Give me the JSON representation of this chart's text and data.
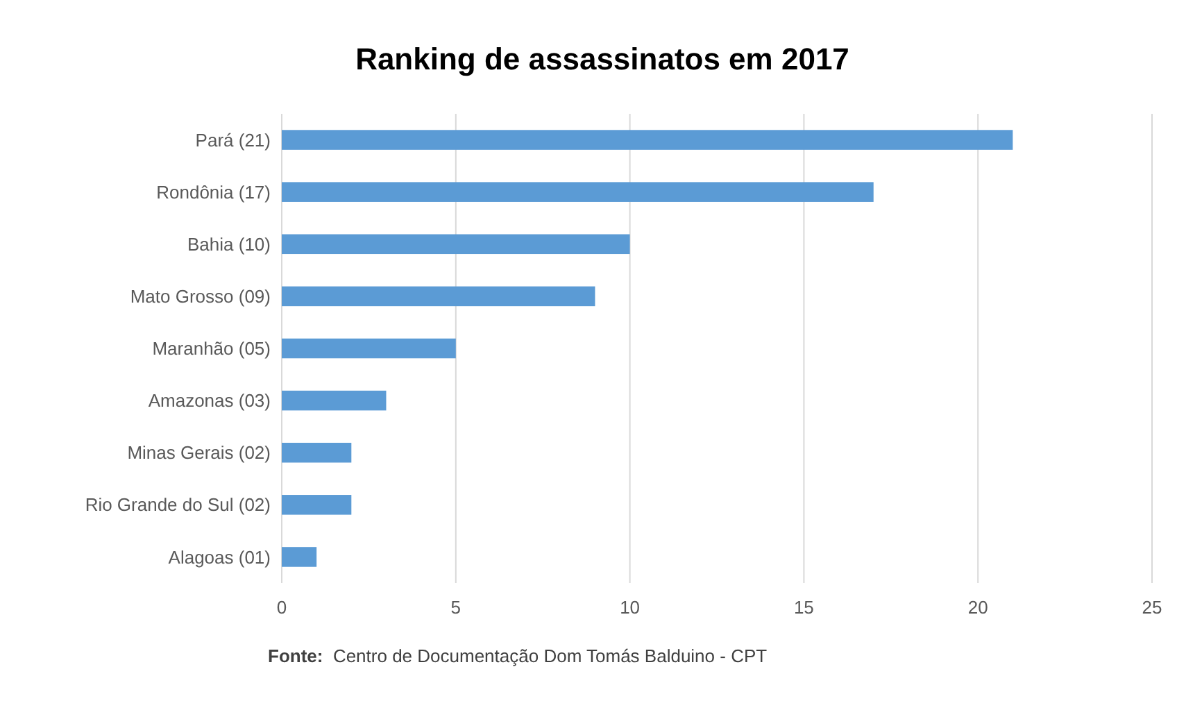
{
  "chart_data": {
    "type": "bar",
    "orientation": "horizontal",
    "title": "Ranking de assassinatos em 2017",
    "categories": [
      "Pará (21)",
      "Rondônia (17)",
      "Bahia (10)",
      "Mato Grosso (09)",
      "Maranhão (05)",
      "Amazonas (03)",
      "Minas Gerais (02)",
      "Rio Grande do Sul (02)",
      "Alagoas (01)"
    ],
    "values": [
      21,
      17,
      10,
      9,
      5,
      3,
      2,
      2,
      1
    ],
    "color": "#5b9bd5",
    "xlim": [
      0,
      25
    ],
    "xticks": [
      0,
      5,
      10,
      15,
      20,
      25
    ],
    "grid": "x",
    "annotations": [
      "Fonte:  Centro de Documentação Dom Tomás Balduino - CPT"
    ]
  }
}
